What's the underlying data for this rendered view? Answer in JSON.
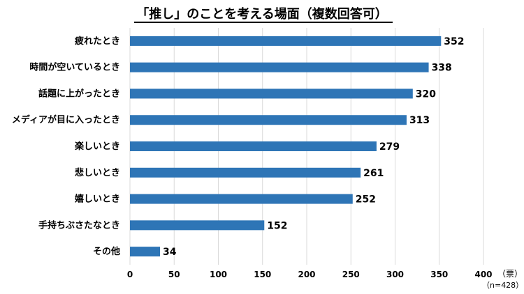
{
  "chart_data": {
    "type": "bar",
    "orientation": "horizontal",
    "title": "「推し」のことを考える場面（複数回答可）",
    "categories": [
      "疲れたとき",
      "時間が空いているとき",
      "話題に上がったとき",
      "メディアが目に入ったとき",
      "楽しいとき",
      "悲しいとき",
      "嬉しいとき",
      "手持ちぶさたなとき",
      "その他"
    ],
    "values": [
      352,
      338,
      320,
      313,
      279,
      261,
      252,
      152,
      34
    ],
    "xlim": [
      0,
      400
    ],
    "xticks": [
      0,
      50,
      100,
      150,
      200,
      250,
      300,
      350,
      400
    ],
    "xunit": "（票）",
    "note": "（n=428）",
    "grid": true,
    "bar_color": "#2e75b6",
    "grid_color": "#d9d9d9",
    "title_underline_color": "#000000"
  }
}
